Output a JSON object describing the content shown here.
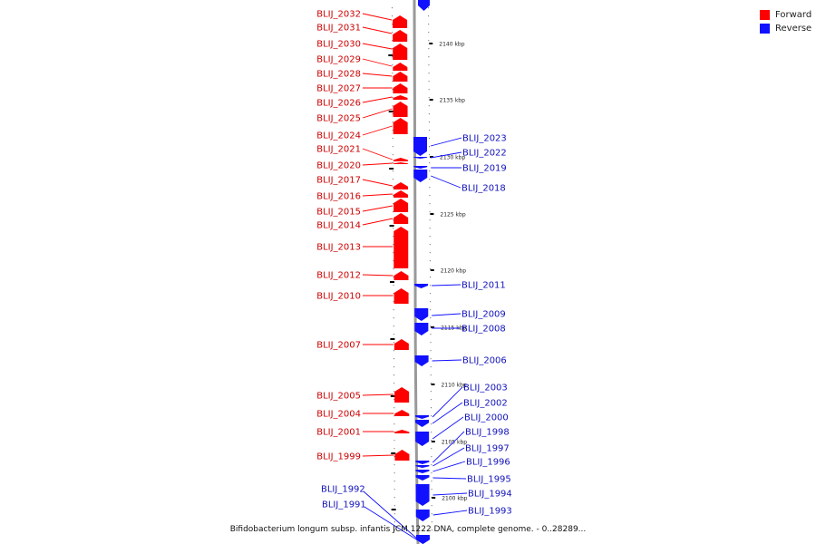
{
  "caption": "Bifidobacterium longum subsp. infantis JCM 1222 DNA, complete genome. - 0..28289...",
  "colors": {
    "forward": "#ff0000",
    "reverse": "#1111ff",
    "axis": "#999999"
  },
  "legend": [
    {
      "label": "Forward",
      "color": "#ff0000"
    },
    {
      "label": "Reverse",
      "color": "#1111ff"
    }
  ],
  "ruler": [
    {
      "label": "2140 kbp"
    },
    {
      "label": "2135 kbp"
    },
    {
      "label": "2130 kbp"
    },
    {
      "label": "2125 kbp"
    },
    {
      "label": "2120 kbp"
    },
    {
      "label": "2115 kbp"
    },
    {
      "label": "2110 kbp"
    },
    {
      "label": "2105 kbp"
    },
    {
      "label": "2100 kbp"
    }
  ],
  "genes": [
    {
      "id": "BLIJ_2032",
      "strand": "forward"
    },
    {
      "id": "BLIJ_2031",
      "strand": "forward"
    },
    {
      "id": "BLIJ_2030",
      "strand": "forward"
    },
    {
      "id": "BLIJ_2029",
      "strand": "forward"
    },
    {
      "id": "BLIJ_2028",
      "strand": "forward"
    },
    {
      "id": "BLIJ_2027",
      "strand": "forward"
    },
    {
      "id": "BLIJ_2026",
      "strand": "forward"
    },
    {
      "id": "BLIJ_2025",
      "strand": "forward"
    },
    {
      "id": "BLIJ_2024",
      "strand": "forward"
    },
    {
      "id": "BLIJ_2021",
      "strand": "forward"
    },
    {
      "id": "BLIJ_2020",
      "strand": "forward"
    },
    {
      "id": "BLIJ_2017",
      "strand": "forward"
    },
    {
      "id": "BLIJ_2016",
      "strand": "forward"
    },
    {
      "id": "BLIJ_2015",
      "strand": "forward"
    },
    {
      "id": "BLIJ_2014",
      "strand": "forward"
    },
    {
      "id": "BLIJ_2013",
      "strand": "forward"
    },
    {
      "id": "BLIJ_2012",
      "strand": "forward"
    },
    {
      "id": "BLIJ_2010",
      "strand": "forward"
    },
    {
      "id": "BLIJ_2007",
      "strand": "forward"
    },
    {
      "id": "BLIJ_2005",
      "strand": "forward"
    },
    {
      "id": "BLIJ_2004",
      "strand": "forward"
    },
    {
      "id": "BLIJ_2001",
      "strand": "forward"
    },
    {
      "id": "BLIJ_1999",
      "strand": "forward"
    },
    {
      "id": "BLIJ_2023",
      "strand": "reverse"
    },
    {
      "id": "BLIJ_2022",
      "strand": "reverse"
    },
    {
      "id": "BLIJ_2019",
      "strand": "reverse"
    },
    {
      "id": "BLIJ_2018",
      "strand": "reverse"
    },
    {
      "id": "BLIJ_2011",
      "strand": "reverse"
    },
    {
      "id": "BLIJ_2009",
      "strand": "reverse"
    },
    {
      "id": "BLIJ_2008",
      "strand": "reverse"
    },
    {
      "id": "BLIJ_2006",
      "strand": "reverse"
    },
    {
      "id": "BLIJ_2003",
      "strand": "reverse"
    },
    {
      "id": "BLIJ_2002",
      "strand": "reverse"
    },
    {
      "id": "BLIJ_2000",
      "strand": "reverse"
    },
    {
      "id": "BLIJ_1998",
      "strand": "reverse"
    },
    {
      "id": "BLIJ_1997",
      "strand": "reverse"
    },
    {
      "id": "BLIJ_1996",
      "strand": "reverse"
    },
    {
      "id": "BLIJ_1995",
      "strand": "reverse"
    },
    {
      "id": "BLIJ_1994",
      "strand": "reverse"
    },
    {
      "id": "BLIJ_1993",
      "strand": "reverse"
    },
    {
      "id": "BLIJ_1992",
      "strand": "reverse"
    },
    {
      "id": "BLIJ_1991",
      "strand": "reverse"
    }
  ]
}
